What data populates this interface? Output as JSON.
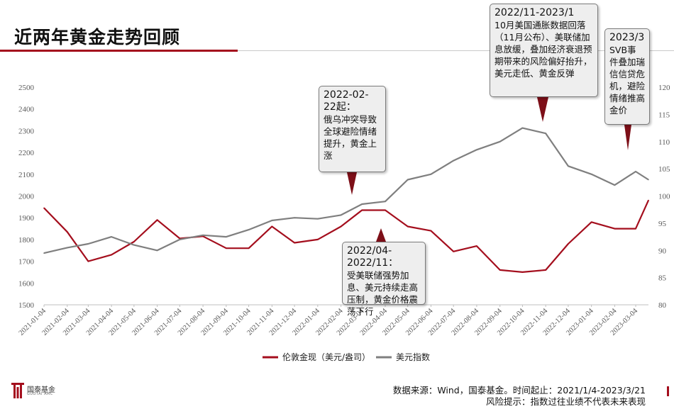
{
  "page": {
    "title": "近两年黄金走势回顾",
    "source_text": "数据来源：Wind，国泰基金。时间起止：2021/1/4-2023/3/21",
    "risk_text": "风险提示：指数过往业绩不代表未来表现",
    "logo_text": "国泰基金",
    "logo_sub": "GUOTAI AMC"
  },
  "colors": {
    "gold": "#a40e1d",
    "usd": "#7f7f7f",
    "accent": "#a40e1d"
  },
  "callouts": [
    {
      "head": "2022-02-22起：",
      "body": "俄乌冲突导致全球避险情绪提升，黄金上涨"
    },
    {
      "head": "2022/04-2022/11：",
      "body": "受美联储强势加息、美元持续走高压制，黄金价格震荡下行"
    },
    {
      "head": "2022/11-2023/1",
      "body": "10月美国通胀数据回落（11月公布）、美联储加息放缓，叠加经济衰退预期带来的风险偏好抬升，美元走低、黄金反弹"
    },
    {
      "head": "2023/3",
      "body": "SVB事件叠加瑞信信贷危机，避险情绪推高金价"
    }
  ],
  "chart_data": {
    "type": "line",
    "title": "",
    "x": [
      "2021-01-04",
      "2021-02-04",
      "2021-03-04",
      "2021-04-04",
      "2021-05-04",
      "2021-06-04",
      "2021-07-04",
      "2021-08-04",
      "2021-09-04",
      "2021-10-04",
      "2021-11-04",
      "2021-12-04",
      "2022-01-04",
      "2022-02-04",
      "2022-03-04",
      "2022-04-04",
      "2022-05-04",
      "2022-06-04",
      "2022-07-04",
      "2022-08-04",
      "2022-09-04",
      "2022-10-04",
      "2022-11-04",
      "2022-12-04",
      "2023-01-04",
      "2023-02-04",
      "2023-03-04",
      "2023-03-21"
    ],
    "tick_labels": [
      "2021-01-04",
      "2021-02-04",
      "2021-03-04",
      "2021-04-04",
      "2021-05-04",
      "2021-06-04",
      "2021-07-04",
      "2021-08-04",
      "2021-09-04",
      "2021-10-04",
      "2021-11-04",
      "2021-12-04",
      "2022-01-04",
      "2022-02-04",
      "2022-03-04",
      "2022-04-04",
      "2022-05-04",
      "2022-06-04",
      "2022-07-04",
      "2022-08-04",
      "2022-09-04",
      "2022-10-04",
      "2022-11-04",
      "2022-12-04",
      "2023-01-04",
      "2023-02-04",
      "2023-03-04"
    ],
    "series": [
      {
        "name": "伦敦金现（美元/盎司）",
        "axis": "left",
        "color": "#a40e1d",
        "values": [
          1945,
          1835,
          1700,
          1730,
          1790,
          1890,
          1805,
          1815,
          1760,
          1760,
          1860,
          1785,
          1800,
          1860,
          1935,
          1935,
          1860,
          1840,
          1745,
          1770,
          1660,
          1650,
          1660,
          1780,
          1880,
          1850,
          1850,
          1980
        ]
      },
      {
        "name": "美元指数",
        "axis": "right",
        "color": "#7f7f7f",
        "values": [
          89.5,
          90.5,
          91.2,
          92.5,
          91.0,
          90.0,
          92.0,
          92.8,
          92.5,
          93.8,
          95.5,
          96.0,
          95.8,
          96.5,
          98.5,
          99.0,
          103.0,
          104.0,
          106.5,
          108.5,
          110.0,
          112.5,
          111.5,
          105.5,
          104.0,
          102.0,
          104.5,
          103.0
        ]
      }
    ],
    "ylim_left": [
      1500,
      2500
    ],
    "yticks_left": [
      1500,
      1600,
      1700,
      1800,
      1900,
      2000,
      2100,
      2200,
      2300,
      2400,
      2500
    ],
    "ylim_right": [
      80,
      120
    ],
    "yticks_right": [
      80,
      85,
      90,
      95,
      100,
      105,
      110,
      115,
      120
    ],
    "grid": false,
    "legend": "bottom"
  }
}
